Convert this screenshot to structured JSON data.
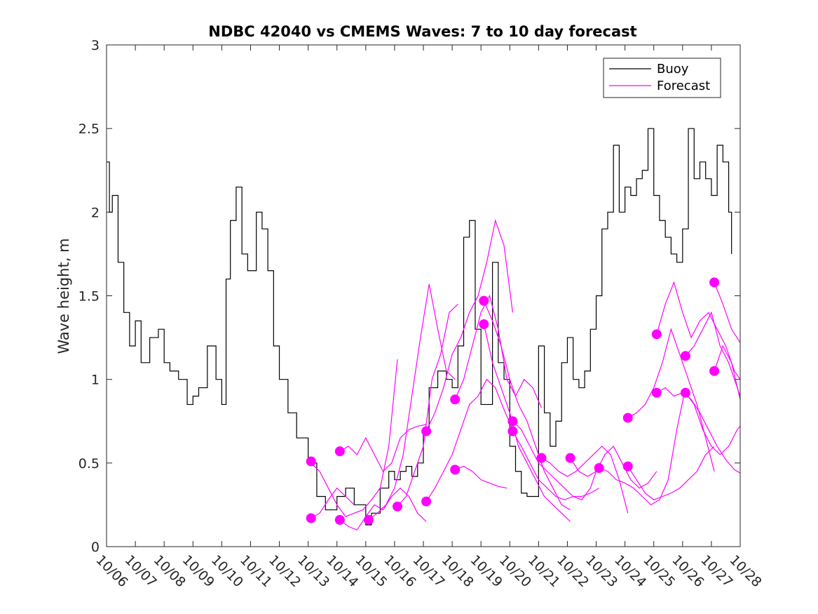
{
  "chart_data": {
    "type": "line",
    "title": "NDBC 42040 vs CMEMS Waves: 7 to 10 day forecast",
    "xlabel": "",
    "ylabel": "Wave height, m",
    "xlim": [
      0,
      22
    ],
    "ylim": [
      0,
      3
    ],
    "x_tick_labels": [
      "10/06",
      "10/07",
      "10/08",
      "10/09",
      "10/10",
      "10/11",
      "10/12",
      "10/13",
      "10/14",
      "10/15",
      "10/16",
      "10/17",
      "10/18",
      "10/19",
      "10/20",
      "10/21",
      "10/22",
      "10/23",
      "10/24",
      "10/25",
      "10/26",
      "10/27",
      "10/28"
    ],
    "y_ticks": [
      0,
      0.5,
      1,
      1.5,
      2,
      2.5,
      3
    ],
    "y_tick_labels": [
      "0",
      "0.5",
      "1",
      "1.5",
      "2",
      "2.5",
      "3"
    ],
    "legend": {
      "placement": "top-right",
      "entries": [
        {
          "label": "Buoy",
          "color": "#000000"
        },
        {
          "label": "Forecast",
          "color": "#ff00ff"
        }
      ]
    },
    "colors": {
      "buoy": "#000000",
      "forecast": "#ff00ff"
    },
    "series": [
      {
        "name": "Buoy",
        "x": [
          0,
          0.1,
          0.2,
          0.4,
          0.6,
          0.8,
          1.0,
          1.2,
          1.5,
          1.8,
          2.0,
          2.2,
          2.5,
          2.8,
          3.0,
          3.2,
          3.5,
          3.8,
          4.0,
          4.15,
          4.3,
          4.5,
          4.7,
          4.9,
          5.2,
          5.4,
          5.6,
          5.8,
          6.0,
          6.3,
          6.6,
          7.0,
          7.3,
          7.6,
          8.0,
          8.3,
          8.6,
          9.0,
          9.2,
          9.5,
          9.8,
          10.0,
          10.2,
          10.4,
          10.6,
          10.8,
          11.0,
          11.2,
          11.5,
          11.8,
          12.0,
          12.2,
          12.4,
          12.6,
          12.8,
          13.0,
          13.2,
          13.4,
          13.6,
          13.8,
          14.0,
          14.2,
          14.4,
          14.6,
          14.8,
          15.0,
          15.2,
          15.4,
          15.6,
          15.8,
          16.0,
          16.2,
          16.4,
          16.6,
          16.8,
          17.0,
          17.2,
          17.4,
          17.6,
          17.8,
          18.0,
          18.2,
          18.4,
          18.6,
          18.8,
          19.0,
          19.2,
          19.4,
          19.6,
          19.8,
          20.0,
          20.2,
          20.4,
          20.6,
          20.8,
          21.0,
          21.2,
          21.4,
          21.6,
          21.7
        ],
        "values": [
          2.3,
          2.0,
          2.1,
          1.7,
          1.4,
          1.2,
          1.35,
          1.1,
          1.25,
          1.3,
          1.1,
          1.05,
          1.0,
          0.85,
          0.9,
          0.95,
          1.2,
          1.0,
          0.85,
          1.6,
          1.95,
          2.15,
          1.75,
          1.65,
          2.0,
          1.9,
          1.65,
          1.2,
          1.0,
          0.8,
          0.65,
          0.5,
          0.3,
          0.22,
          0.3,
          0.35,
          0.25,
          0.13,
          0.2,
          0.35,
          0.45,
          0.4,
          0.45,
          0.48,
          0.42,
          0.5,
          0.7,
          0.95,
          1.05,
          1.0,
          0.95,
          1.2,
          1.85,
          1.95,
          1.3,
          0.85,
          0.85,
          1.7,
          1.1,
          1.0,
          0.6,
          0.45,
          0.32,
          0.3,
          0.3,
          1.2,
          0.8,
          0.6,
          0.75,
          1.1,
          1.25,
          1.0,
          0.95,
          1.05,
          1.3,
          1.5,
          1.9,
          2.0,
          2.4,
          2.0,
          2.15,
          2.1,
          2.2,
          2.25,
          2.5,
          2.1,
          1.95,
          1.85,
          1.75,
          1.7,
          1.9,
          2.5,
          2.2,
          2.3,
          2.2,
          2.1,
          2.4,
          2.3,
          2.0,
          1.75
        ]
      }
    ],
    "forecast_runs": [
      {
        "name": "Forecast",
        "x": [
          7.1,
          7.4,
          7.7,
          8.0,
          8.3,
          8.6,
          8.9,
          9.2,
          9.5,
          9.8,
          10.1
        ],
        "values": [
          0.5,
          0.45,
          0.35,
          0.25,
          0.18,
          0.2,
          0.22,
          0.28,
          0.35,
          0.6,
          1.12
        ]
      },
      {
        "name": "Forecast",
        "x": [
          7.1,
          7.4,
          7.7,
          8.0,
          8.3,
          8.6
        ],
        "values": [
          0.17,
          0.2,
          0.28,
          0.35,
          0.3,
          0.25
        ]
      },
      {
        "name": "Forecast",
        "x": [
          8.1,
          8.4,
          8.7,
          9.0,
          9.3,
          9.6,
          9.9,
          10.2,
          10.5,
          10.8,
          11.1
        ],
        "values": [
          0.57,
          0.6,
          0.55,
          0.65,
          0.55,
          0.45,
          0.5,
          0.65,
          0.7,
          0.72,
          0.73
        ]
      },
      {
        "name": "Forecast",
        "x": [
          8.1,
          8.4,
          8.7,
          9.0,
          9.3,
          9.6,
          9.9,
          10.2,
          10.5,
          10.8,
          11.1
        ],
        "values": [
          0.16,
          0.12,
          0.1,
          0.18,
          0.25,
          0.22,
          0.3,
          0.35,
          0.3,
          0.2,
          0.15
        ]
      },
      {
        "name": "Forecast",
        "x": [
          9.1,
          9.4,
          9.7,
          10.0,
          10.3,
          10.6,
          10.9,
          11.2,
          11.5,
          11.8,
          12.1
        ],
        "values": [
          0.16,
          0.2,
          0.25,
          0.35,
          0.55,
          0.9,
          1.25,
          1.57,
          1.3,
          1.05,
          1.0
        ]
      },
      {
        "name": "Forecast",
        "x": [
          10.1,
          10.4,
          10.7,
          11.0,
          11.3,
          11.6,
          11.9,
          12.2
        ],
        "values": [
          0.24,
          0.3,
          0.45,
          0.6,
          1.0,
          1.15,
          1.4,
          1.45
        ]
      },
      {
        "name": "Forecast",
        "x": [
          11.1,
          11.4,
          11.7,
          12.0,
          12.3,
          12.6,
          12.9,
          13.2,
          13.5,
          13.8,
          14.1
        ],
        "values": [
          0.69,
          0.8,
          0.95,
          1.15,
          1.25,
          1.4,
          1.5,
          1.7,
          1.95,
          1.8,
          1.4
        ]
      },
      {
        "name": "Forecast",
        "x": [
          11.1,
          11.4,
          11.7,
          12.0,
          12.3,
          12.6,
          12.9,
          13.2,
          13.5,
          13.8,
          14.1
        ],
        "values": [
          0.27,
          0.35,
          0.45,
          0.55,
          0.7,
          0.85,
          0.9,
          1.0,
          0.95,
          0.82,
          0.7
        ]
      },
      {
        "name": "Forecast",
        "x": [
          12.1,
          12.4,
          12.7,
          13.0,
          13.3,
          13.6,
          13.9,
          14.2,
          14.5,
          14.8,
          15.1
        ],
        "values": [
          0.88,
          1.0,
          1.2,
          1.4,
          1.5,
          1.3,
          1.0,
          0.9,
          1.0,
          0.95,
          0.83
        ]
      },
      {
        "name": "Forecast",
        "x": [
          12.1,
          12.4,
          12.7,
          13.0,
          13.3,
          13.6,
          13.9
        ],
        "values": [
          0.46,
          0.48,
          0.45,
          0.4,
          0.38,
          0.36,
          0.35
        ]
      },
      {
        "name": "Forecast",
        "x": [
          13.1,
          13.4,
          13.7,
          14.0,
          14.3,
          14.6,
          14.9,
          15.2,
          15.5,
          15.8,
          16.1
        ],
        "values": [
          1.47,
          1.35,
          1.2,
          1.0,
          0.85,
          0.75,
          0.6,
          0.45,
          0.35,
          0.25,
          0.22
        ]
      },
      {
        "name": "Forecast",
        "x": [
          13.1,
          13.4,
          13.7,
          14.0,
          14.3,
          14.6,
          14.9,
          15.2,
          15.5,
          15.8,
          16.1
        ],
        "values": [
          1.33,
          1.1,
          0.95,
          0.8,
          0.6,
          0.5,
          0.4,
          0.3,
          0.25,
          0.2,
          0.15
        ]
      },
      {
        "name": "Forecast",
        "x": [
          14.1,
          14.4,
          14.7,
          15.0,
          15.3,
          15.6,
          15.9,
          16.2,
          16.5,
          16.8,
          17.1
        ],
        "values": [
          0.75,
          0.7,
          0.6,
          0.5,
          0.45,
          0.4,
          0.35,
          0.3,
          0.28,
          0.35,
          0.5
        ]
      },
      {
        "name": "Forecast",
        "x": [
          14.1,
          14.4,
          14.7,
          15.0,
          15.3,
          15.6,
          15.9,
          16.2,
          16.5,
          16.8,
          17.1
        ],
        "values": [
          0.69,
          0.6,
          0.5,
          0.4,
          0.35,
          0.3,
          0.28,
          0.3,
          0.3,
          0.32,
          0.35
        ]
      },
      {
        "name": "Forecast",
        "x": [
          15.1,
          15.4,
          15.7,
          16.0,
          16.3,
          16.6,
          16.9,
          17.2,
          17.5,
          17.8,
          18.1
        ],
        "values": [
          0.53,
          0.5,
          0.45,
          0.42,
          0.45,
          0.5,
          0.55,
          0.6,
          0.55,
          0.4,
          0.2
        ]
      },
      {
        "name": "Forecast",
        "x": [
          16.1,
          16.4,
          16.7,
          17.0,
          17.3,
          17.6,
          17.9,
          18.2,
          18.5,
          18.8,
          19.1
        ],
        "values": [
          0.53,
          0.45,
          0.42,
          0.45,
          0.55,
          0.6,
          0.5,
          0.4,
          0.35,
          0.38,
          0.45
        ]
      },
      {
        "name": "Forecast",
        "x": [
          17.1,
          17.4,
          17.7,
          18.0,
          18.3,
          18.6,
          18.9,
          19.2,
          19.5,
          19.8,
          20.1
        ],
        "values": [
          0.47,
          0.45,
          0.4,
          0.38,
          0.35,
          0.3,
          0.25,
          0.28,
          0.4,
          0.7,
          0.95
        ]
      },
      {
        "name": "Forecast",
        "x": [
          18.1,
          18.4,
          18.7,
          19.0,
          19.3,
          19.6,
          19.9,
          20.2,
          20.5,
          20.8,
          21.1
        ],
        "values": [
          0.77,
          0.8,
          0.85,
          0.95,
          1.1,
          1.3,
          1.15,
          1.0,
          0.85,
          0.65,
          0.45
        ]
      },
      {
        "name": "Forecast",
        "x": [
          18.1,
          18.4,
          18.7,
          19.0,
          19.3,
          19.6,
          19.9,
          20.2,
          20.5,
          20.8,
          21.1
        ],
        "values": [
          0.48,
          0.4,
          0.32,
          0.28,
          0.3,
          0.32,
          0.35,
          0.4,
          0.45,
          0.55,
          0.6
        ]
      },
      {
        "name": "Forecast",
        "x": [
          19.1,
          19.4,
          19.7,
          20.0,
          20.3,
          20.6,
          20.9,
          21.2,
          21.5,
          21.8,
          22.0
        ],
        "values": [
          1.27,
          1.45,
          1.58,
          1.4,
          1.25,
          1.35,
          1.4,
          1.3,
          1.2,
          1.05,
          1.0
        ]
      },
      {
        "name": "Forecast",
        "x": [
          19.1,
          19.4,
          19.7,
          20.0,
          20.3,
          20.6,
          20.9,
          21.2,
          21.5,
          21.8,
          22.0
        ],
        "values": [
          0.92,
          0.95,
          0.9,
          0.92,
          0.88,
          0.8,
          0.7,
          0.6,
          0.52,
          0.46,
          0.44
        ]
      },
      {
        "name": "Forecast",
        "x": [
          20.1,
          20.4,
          20.7,
          21.0,
          21.3,
          21.6,
          21.9,
          22.0
        ],
        "values": [
          1.14,
          1.2,
          1.3,
          1.4,
          1.2,
          1.1,
          0.95,
          0.9
        ]
      },
      {
        "name": "Forecast",
        "x": [
          20.1,
          20.4,
          20.7,
          21.0,
          21.3,
          21.6,
          21.9,
          22.0
        ],
        "values": [
          0.92,
          0.85,
          0.7,
          0.6,
          0.55,
          0.6,
          0.7,
          0.72
        ]
      },
      {
        "name": "Forecast",
        "x": [
          21.1,
          21.4,
          21.7,
          22.0
        ],
        "values": [
          1.58,
          1.45,
          1.3,
          1.22
        ]
      },
      {
        "name": "Forecast",
        "x": [
          21.1,
          21.4,
          21.7,
          22.0
        ],
        "values": [
          1.05,
          1.2,
          1.1,
          0.88
        ]
      }
    ],
    "forecast_start_markers": [
      {
        "x": 7.1,
        "y": 0.51
      },
      {
        "x": 7.1,
        "y": 0.17
      },
      {
        "x": 8.1,
        "y": 0.57
      },
      {
        "x": 8.1,
        "y": 0.16
      },
      {
        "x": 9.1,
        "y": 0.16
      },
      {
        "x": 10.1,
        "y": 0.24
      },
      {
        "x": 11.1,
        "y": 0.69
      },
      {
        "x": 11.1,
        "y": 0.27
      },
      {
        "x": 12.1,
        "y": 0.88
      },
      {
        "x": 12.1,
        "y": 0.46
      },
      {
        "x": 13.1,
        "y": 1.47
      },
      {
        "x": 13.1,
        "y": 1.33
      },
      {
        "x": 14.1,
        "y": 0.75
      },
      {
        "x": 14.1,
        "y": 0.69
      },
      {
        "x": 15.1,
        "y": 0.53
      },
      {
        "x": 16.1,
        "y": 0.53
      },
      {
        "x": 17.1,
        "y": 0.47
      },
      {
        "x": 18.1,
        "y": 0.77
      },
      {
        "x": 18.1,
        "y": 0.48
      },
      {
        "x": 19.1,
        "y": 1.27
      },
      {
        "x": 19.1,
        "y": 0.92
      },
      {
        "x": 20.1,
        "y": 1.14
      },
      {
        "x": 20.1,
        "y": 0.92
      },
      {
        "x": 21.1,
        "y": 1.58
      },
      {
        "x": 21.1,
        "y": 1.05
      }
    ]
  }
}
